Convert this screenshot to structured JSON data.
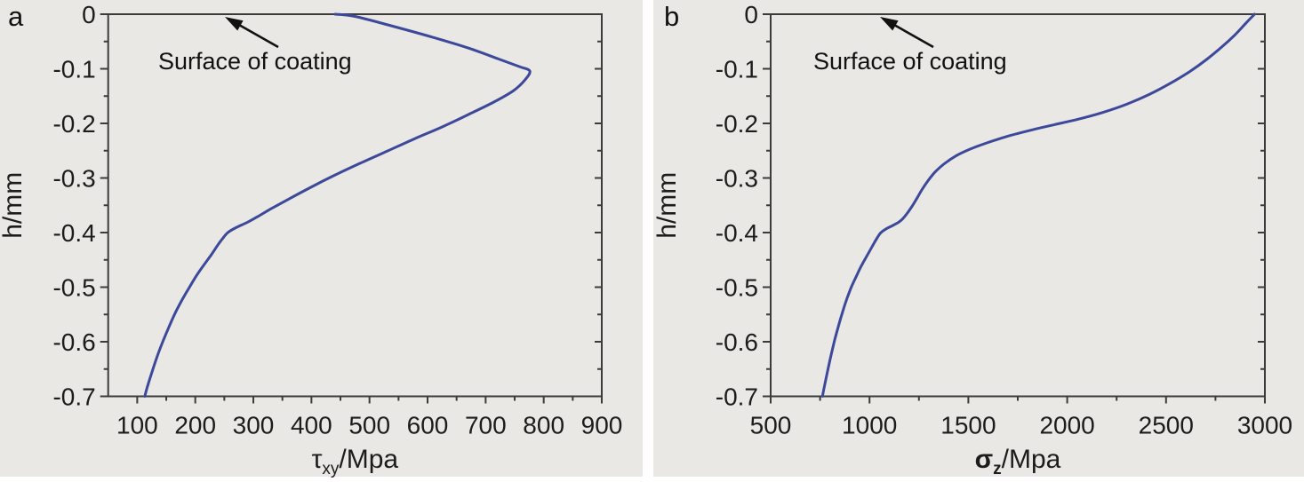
{
  "figure": {
    "colors": {
      "panel_background": "#e9e8e5",
      "gap_background": "#ffffff",
      "axis": "#3b3b3b",
      "tick_label": "#1c1c1c",
      "annotation_text": "#111111",
      "curve": "#3c4899"
    }
  },
  "chart_data": [
    {
      "type": "line",
      "panel_label": "a",
      "annotation": "Surface of coating",
      "ylabel": "h/mm",
      "xlabel": {
        "symbol": "τ",
        "subscript": "xy",
        "rest": "/Mpa",
        "bold": false
      },
      "xlim": [
        50,
        900
      ],
      "ylim": [
        -0.7,
        0
      ],
      "xtick_values": [
        100,
        200,
        300,
        400,
        500,
        600,
        700,
        800,
        900
      ],
      "xtick_labels": [
        "100",
        "200",
        "300",
        "400",
        "500",
        "600",
        "700",
        "800",
        "900"
      ],
      "xtick_minor_values": [
        150,
        250,
        350,
        450,
        550,
        650,
        750,
        850
      ],
      "ytick_values": [
        0,
        -0.1,
        -0.2,
        -0.3,
        -0.4,
        -0.5,
        -0.6,
        -0.7
      ],
      "ytick_labels": [
        "0",
        "-0.1",
        "-0.2",
        "-0.3",
        "-0.4",
        "-0.5",
        "-0.6",
        "-0.7"
      ],
      "ytick_minor_values": [
        -0.05,
        -0.15,
        -0.25,
        -0.35,
        -0.45,
        -0.55,
        -0.65
      ],
      "grid": false,
      "series": [
        {
          "name": "tau-xy-depth-profile",
          "color": "#3c4899",
          "points": [
            [
              441,
              0
            ],
            [
              475,
              -0.004
            ],
            [
              540,
              -0.022
            ],
            [
              608,
              -0.042
            ],
            [
              670,
              -0.062
            ],
            [
              722,
              -0.082
            ],
            [
              758,
              -0.096
            ],
            [
              776,
              -0.104
            ],
            [
              768,
              -0.12
            ],
            [
              748,
              -0.14
            ],
            [
              714,
              -0.161
            ],
            [
              672,
              -0.183
            ],
            [
              626,
              -0.206
            ],
            [
              578,
              -0.228
            ],
            [
              530,
              -0.251
            ],
            [
              484,
              -0.273
            ],
            [
              440,
              -0.295
            ],
            [
              399,
              -0.317
            ],
            [
              362,
              -0.338
            ],
            [
              331,
              -0.356
            ],
            [
              307,
              -0.371
            ],
            [
              290,
              -0.381
            ],
            [
              270,
              -0.391
            ],
            [
              256,
              -0.4
            ],
            [
              247,
              -0.411
            ],
            [
              238,
              -0.424
            ],
            [
              228,
              -0.44
            ],
            [
              215,
              -0.459
            ],
            [
              202,
              -0.479
            ],
            [
              190,
              -0.5
            ],
            [
              178,
              -0.522
            ],
            [
              166,
              -0.546
            ],
            [
              155,
              -0.572
            ],
            [
              144,
              -0.6
            ],
            [
              134,
              -0.628
            ],
            [
              125,
              -0.657
            ],
            [
              117,
              -0.684
            ],
            [
              113,
              -0.7
            ]
          ]
        }
      ]
    },
    {
      "type": "line",
      "panel_label": "b",
      "annotation": "Surface of coating",
      "ylabel": "h/mm",
      "xlabel": {
        "symbol": "σ",
        "subscript": "z",
        "rest": "/Mpa",
        "bold": true
      },
      "xlim": [
        500,
        3000
      ],
      "ylim": [
        -0.7,
        0
      ],
      "xtick_values": [
        500,
        1000,
        1500,
        2000,
        2500,
        3000
      ],
      "xtick_labels": [
        "500",
        "1000",
        "1500",
        "2000",
        "2500",
        "3000"
      ],
      "xtick_minor_values": [
        750,
        1250,
        1750,
        2250,
        2750
      ],
      "ytick_values": [
        0,
        -0.1,
        -0.2,
        -0.3,
        -0.4,
        -0.5,
        -0.6,
        -0.7
      ],
      "ytick_labels": [
        "0",
        "-0.1",
        "-0.2",
        "-0.3",
        "-0.4",
        "-0.5",
        "-0.6",
        "-0.7"
      ],
      "ytick_minor_values": [
        -0.05,
        -0.15,
        -0.25,
        -0.35,
        -0.45,
        -0.55,
        -0.65
      ],
      "grid": false,
      "series": [
        {
          "name": "sigma-z-depth-profile",
          "color": "#3c4899",
          "points": [
            [
              2948,
              0
            ],
            [
              2905,
              -0.016
            ],
            [
              2848,
              -0.038
            ],
            [
              2782,
              -0.06
            ],
            [
              2705,
              -0.083
            ],
            [
              2620,
              -0.105
            ],
            [
              2520,
              -0.127
            ],
            [
              2415,
              -0.147
            ],
            [
              2300,
              -0.165
            ],
            [
              2180,
              -0.18
            ],
            [
              2060,
              -0.192
            ],
            [
              1940,
              -0.202
            ],
            [
              1820,
              -0.212
            ],
            [
              1705,
              -0.223
            ],
            [
              1600,
              -0.235
            ],
            [
              1510,
              -0.247
            ],
            [
              1435,
              -0.26
            ],
            [
              1378,
              -0.274
            ],
            [
              1332,
              -0.289
            ],
            [
              1296,
              -0.305
            ],
            [
              1266,
              -0.321
            ],
            [
              1240,
              -0.337
            ],
            [
              1215,
              -0.352
            ],
            [
              1192,
              -0.364
            ],
            [
              1170,
              -0.374
            ],
            [
              1148,
              -0.381
            ],
            [
              1118,
              -0.387
            ],
            [
              1085,
              -0.393
            ],
            [
              1058,
              -0.4
            ],
            [
              1040,
              -0.409
            ],
            [
              1022,
              -0.42
            ],
            [
              1002,
              -0.433
            ],
            [
              980,
              -0.447
            ],
            [
              956,
              -0.463
            ],
            [
              932,
              -0.481
            ],
            [
              908,
              -0.5
            ],
            [
              886,
              -0.521
            ],
            [
              864,
              -0.545
            ],
            [
              843,
              -0.571
            ],
            [
              823,
              -0.598
            ],
            [
              804,
              -0.627
            ],
            [
              786,
              -0.657
            ],
            [
              769,
              -0.687
            ],
            [
              762,
              -0.7
            ]
          ]
        }
      ]
    }
  ]
}
